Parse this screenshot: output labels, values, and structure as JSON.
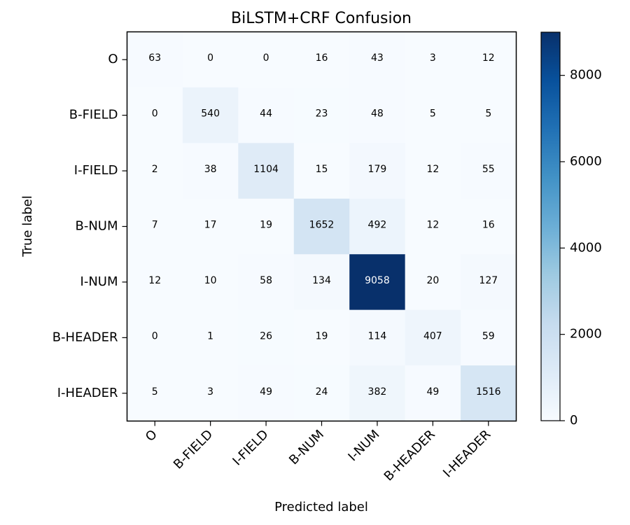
{
  "chart_data": {
    "type": "heatmap",
    "title": "BiLSTM+CRF Confusion",
    "xlabel": "Predicted label",
    "ylabel": "True label",
    "x_categories": [
      "O",
      "B-FIELD",
      "I-FIELD",
      "B-NUM",
      "I-NUM",
      "B-HEADER",
      "I-HEADER"
    ],
    "y_categories": [
      "O",
      "B-FIELD",
      "I-FIELD",
      "B-NUM",
      "I-NUM",
      "B-HEADER",
      "I-HEADER"
    ],
    "matrix": [
      [
        63,
        0,
        0,
        16,
        43,
        3,
        12
      ],
      [
        0,
        540,
        44,
        23,
        48,
        5,
        5
      ],
      [
        2,
        38,
        1104,
        15,
        179,
        12,
        55
      ],
      [
        7,
        17,
        19,
        1652,
        492,
        12,
        16
      ],
      [
        12,
        10,
        58,
        134,
        9058,
        20,
        127
      ],
      [
        0,
        1,
        26,
        19,
        114,
        407,
        59
      ],
      [
        5,
        3,
        49,
        24,
        382,
        49,
        1516
      ]
    ],
    "colormap": "Blues",
    "colors": {
      "low": "#f7fbff",
      "high": "#08306b"
    },
    "value_range": [
      0,
      9058
    ],
    "colorbar_ticks": [
      0,
      2000,
      4000,
      6000,
      8000
    ]
  }
}
